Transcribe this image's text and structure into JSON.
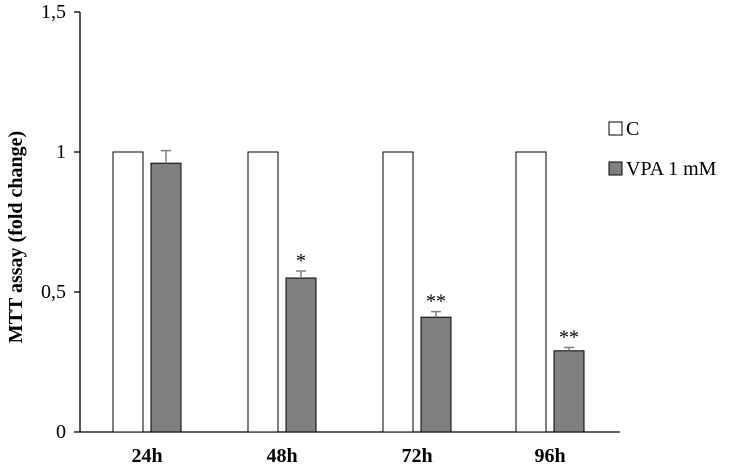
{
  "chart_data": {
    "type": "bar",
    "title": "",
    "xlabel": "",
    "ylabel": "MTT assay (fold change)",
    "ylim": [
      0,
      1.5
    ],
    "yticks": [
      {
        "value": 0,
        "label": "0"
      },
      {
        "value": 0.5,
        "label": "0,5"
      },
      {
        "value": 1,
        "label": "1"
      },
      {
        "value": 1.5,
        "label": "1,5"
      }
    ],
    "categories": [
      "24h",
      "48h",
      "72h",
      "96h"
    ],
    "series": [
      {
        "name": "C",
        "color": "#ffffff",
        "values": [
          1,
          1,
          1,
          1
        ],
        "errors": [
          0,
          0,
          0,
          0
        ]
      },
      {
        "name": "VPA 1 mM",
        "color": "#808080",
        "values": [
          0.96,
          0.55,
          0.41,
          0.29
        ],
        "errors": [
          0.045,
          0.025,
          0.02,
          0.012
        ]
      }
    ],
    "significance": [
      {
        "category": "48h",
        "series": "VPA 1 mM",
        "label": "*"
      },
      {
        "category": "72h",
        "series": "VPA 1 mM",
        "label": "**"
      },
      {
        "category": "96h",
        "series": "VPA 1 mM",
        "label": "**"
      }
    ],
    "legend_position": "right",
    "grid": false
  }
}
